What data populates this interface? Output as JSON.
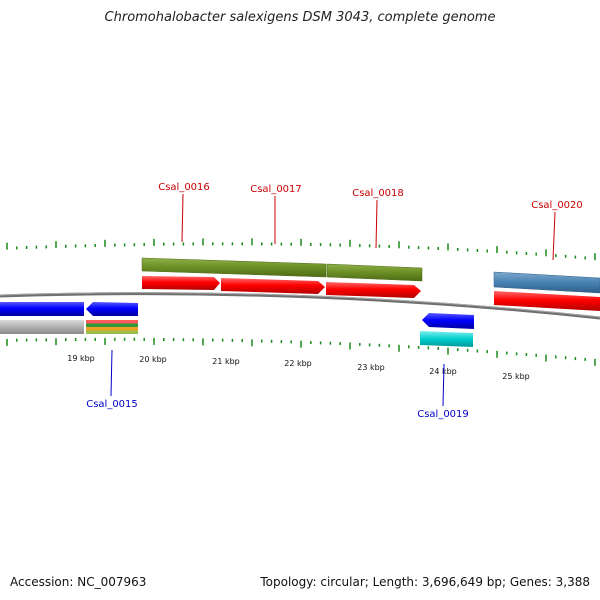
{
  "title": "Chromohalobacter salexigens DSM 3043, complete genome",
  "footer": {
    "accession": "Accession: NC_007963",
    "summary": "Topology: circular; Length: 3,696,649 bp; Genes: 3,388"
  },
  "colors": {
    "forward_label": "#cc0000",
    "reverse_label": "#0000cc",
    "cds_forward": "#ff0000",
    "cds_reverse": "#0000ff",
    "gene_forward": "#6b8e23",
    "gene_reverse": "#b0b0b0",
    "tick": "#1a8a1a",
    "backbone": "#777777"
  },
  "scale_labels": [
    "19 kbp",
    "20 kbp",
    "21 kbp",
    "22 kbp",
    "23 kbp",
    "24 kbp",
    "25 kbp"
  ],
  "genes": [
    {
      "id": "Csal_0015",
      "strand": "reverse"
    },
    {
      "id": "Csal_0016",
      "strand": "forward"
    },
    {
      "id": "Csal_0017",
      "strand": "forward"
    },
    {
      "id": "Csal_0018",
      "strand": "forward"
    },
    {
      "id": "Csal_0019",
      "strand": "reverse"
    },
    {
      "id": "Csal_0020",
      "strand": "forward"
    }
  ]
}
